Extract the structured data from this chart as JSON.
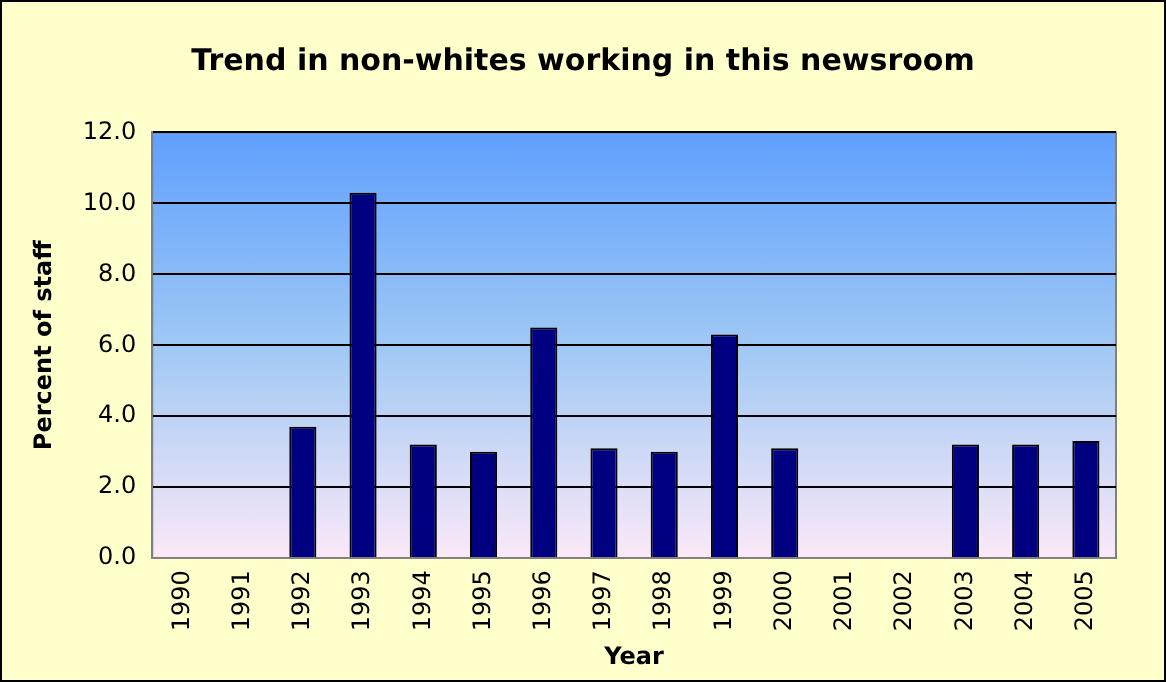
{
  "chart_data": {
    "type": "bar",
    "title": "Trend in non-whites working in this newsroom",
    "xlabel": "Year",
    "ylabel": "Percent of staff",
    "categories": [
      "1990",
      "1991",
      "1992",
      "1993",
      "1994",
      "1995",
      "1996",
      "1997",
      "1998",
      "1999",
      "2000",
      "2001",
      "2002",
      "2003",
      "2004",
      "2005"
    ],
    "values": [
      null,
      null,
      3.7,
      10.3,
      3.2,
      3.0,
      6.5,
      3.1,
      3.0,
      6.3,
      3.1,
      null,
      null,
      3.2,
      3.2,
      3.3
    ],
    "color": "#000080",
    "ylim": [
      0,
      12
    ],
    "yticks": [
      {
        "value": 0,
        "label": "0.0"
      },
      {
        "value": 2,
        "label": "2.0"
      },
      {
        "value": 4,
        "label": "4.0"
      },
      {
        "value": 6,
        "label": "6.0"
      },
      {
        "value": 8,
        "label": "8.0"
      },
      {
        "value": 10,
        "label": "10.0"
      },
      {
        "value": 12,
        "label": "12.0"
      }
    ],
    "grid": "y",
    "legend": false
  }
}
